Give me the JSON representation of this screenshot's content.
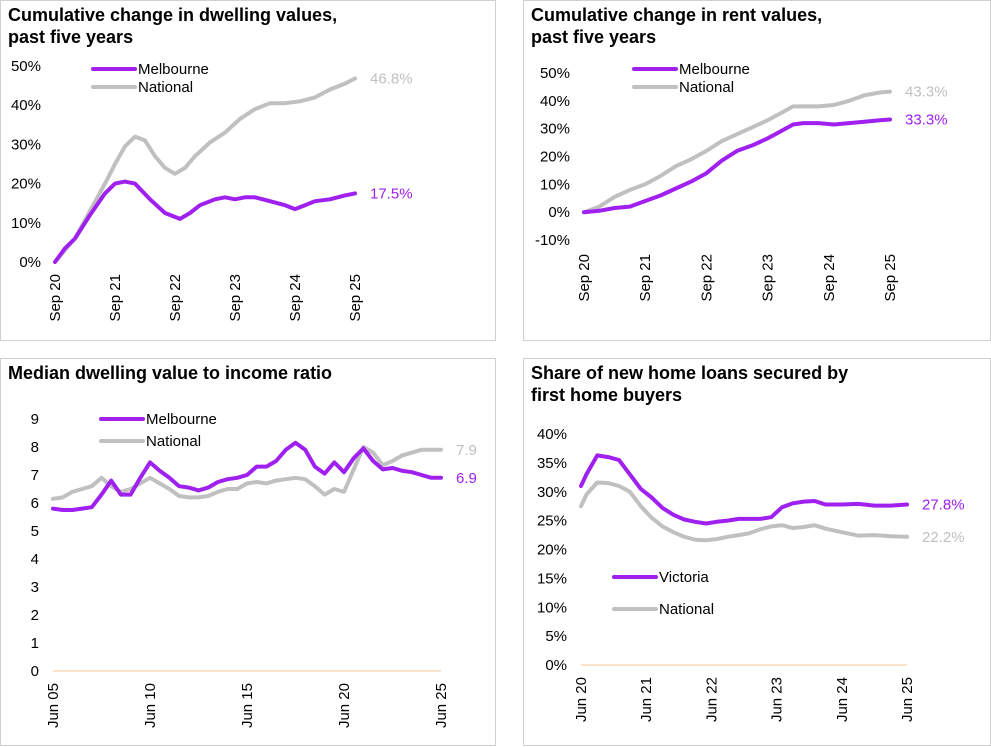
{
  "colors": {
    "melbourne": "#a020f0",
    "national": "#c0c0c0",
    "baseline": "#f5d9b8",
    "border": "#d0d0d0"
  },
  "chart_data": [
    {
      "id": "dwelling",
      "type": "line",
      "title": "Cumulative change in dwelling values,\npast five years",
      "y_ticks": [
        "0%",
        "10%",
        "20%",
        "30%",
        "40%",
        "50%"
      ],
      "x_ticks": [
        "Sep 20",
        "Sep 21",
        "Sep 22",
        "Sep 23",
        "Sep 24",
        "Sep 25"
      ],
      "ylim": [
        0,
        50
      ],
      "x_start": 2020.667,
      "x_end": 2025.667,
      "series": [
        {
          "name": "Melbourne",
          "color_key": "melbourne",
          "end_label": "17.5%",
          "x": [
            2020.667,
            2020.833,
            2021.0,
            2021.25,
            2021.5,
            2021.667,
            2021.833,
            2022.0,
            2022.25,
            2022.5,
            2022.75,
            2022.917,
            2023.083,
            2023.333,
            2023.5,
            2023.667,
            2023.833,
            2024.0,
            2024.25,
            2024.5,
            2024.667,
            2024.833,
            2025.0,
            2025.25,
            2025.5,
            2025.667
          ],
          "y": [
            0,
            3.5,
            6,
            12,
            17.5,
            20,
            20.5,
            20,
            16,
            12.5,
            11,
            12.5,
            14.5,
            16,
            16.5,
            16,
            16.5,
            16.5,
            15.5,
            14.5,
            13.5,
            14.5,
            15.5,
            16,
            17,
            17.5
          ]
        },
        {
          "name": "National",
          "color_key": "national",
          "end_label": "46.8%",
          "x": [
            2020.667,
            2020.833,
            2021.0,
            2021.25,
            2021.5,
            2021.667,
            2021.833,
            2022.0,
            2022.167,
            2022.333,
            2022.5,
            2022.667,
            2022.833,
            2023.0,
            2023.25,
            2023.5,
            2023.75,
            2024.0,
            2024.25,
            2024.5,
            2024.75,
            2025.0,
            2025.25,
            2025.5,
            2025.667
          ],
          "y": [
            0,
            3,
            6,
            13,
            20,
            25,
            29.5,
            32,
            31,
            27,
            24,
            22.5,
            24,
            27,
            30.5,
            33,
            36.5,
            39,
            40.5,
            40.5,
            41,
            42,
            44,
            45.5,
            46.8
          ]
        }
      ]
    },
    {
      "id": "rent",
      "type": "line",
      "title": "Cumulative change in rent values,\npast five years",
      "y_ticks": [
        "-10%",
        "0%",
        "10%",
        "20%",
        "30%",
        "40%",
        "50%"
      ],
      "x_ticks": [
        "Sep 20",
        "Sep 21",
        "Sep 22",
        "Sep 23",
        "Sep 24",
        "Sep 25"
      ],
      "ylim": [
        -10,
        50
      ],
      "x_start": 2020.667,
      "x_end": 2025.667,
      "series": [
        {
          "name": "Melbourne",
          "color_key": "melbourne",
          "end_label": "33.3%",
          "x": [
            2020.667,
            2020.917,
            2021.167,
            2021.417,
            2021.667,
            2021.917,
            2022.167,
            2022.417,
            2022.667,
            2022.917,
            2023.167,
            2023.417,
            2023.667,
            2023.917,
            2024.083,
            2024.25,
            2024.5,
            2024.75,
            2025.0,
            2025.25,
            2025.5,
            2025.667
          ],
          "y": [
            0,
            0.5,
            1.5,
            2,
            4,
            6,
            8.5,
            11,
            14,
            18.5,
            22,
            24,
            26.5,
            29.5,
            31.5,
            32,
            32,
            31.5,
            32,
            32.5,
            33,
            33.3
          ]
        },
        {
          "name": "National",
          "color_key": "national",
          "end_label": "43.3%",
          "x": [
            2020.667,
            2020.917,
            2021.167,
            2021.417,
            2021.667,
            2021.917,
            2022.167,
            2022.417,
            2022.667,
            2022.917,
            2023.167,
            2023.417,
            2023.667,
            2023.917,
            2024.083,
            2024.25,
            2024.5,
            2024.75,
            2025.0,
            2025.25,
            2025.5,
            2025.667
          ],
          "y": [
            0,
            2,
            5.5,
            8,
            10,
            13,
            16.5,
            19,
            22,
            25.5,
            28,
            30.5,
            33,
            36,
            38,
            38,
            38,
            38.5,
            40,
            42,
            43,
            43.3
          ]
        }
      ]
    },
    {
      "id": "ratio",
      "type": "line",
      "title": "Median dwelling value to income ratio",
      "y_ticks": [
        "0",
        "1",
        "2",
        "3",
        "4",
        "5",
        "6",
        "7",
        "8",
        "9"
      ],
      "x_ticks": [
        "Jun 05",
        "Jun 10",
        "Jun 15",
        "Jun 20",
        "Jun 25"
      ],
      "ylim": [
        0,
        9
      ],
      "x_start": 2005.5,
      "x_end": 2025.5,
      "series": [
        {
          "name": "Melbourne",
          "color_key": "melbourne",
          "end_label": "6.9",
          "x": [
            2005.5,
            2006.0,
            2006.5,
            2007.0,
            2007.5,
            2008.0,
            2008.5,
            2009.0,
            2009.5,
            2010.0,
            2010.5,
            2011.0,
            2011.5,
            2012.0,
            2012.5,
            2013.0,
            2013.5,
            2014.0,
            2014.5,
            2015.0,
            2015.5,
            2016.0,
            2016.5,
            2017.0,
            2017.5,
            2018.0,
            2018.5,
            2019.0,
            2019.5,
            2020.0,
            2020.5,
            2021.0,
            2021.5,
            2022.0,
            2022.5,
            2023.0,
            2023.5,
            2024.0,
            2024.5,
            2025.0,
            2025.5
          ],
          "y": [
            5.8,
            5.75,
            5.75,
            5.8,
            5.85,
            6.3,
            6.8,
            6.3,
            6.3,
            6.9,
            7.45,
            7.15,
            6.9,
            6.6,
            6.55,
            6.45,
            6.55,
            6.75,
            6.85,
            6.9,
            7.0,
            7.3,
            7.3,
            7.5,
            7.9,
            8.15,
            7.9,
            7.3,
            7.05,
            7.45,
            7.1,
            7.6,
            7.95,
            7.5,
            7.2,
            7.25,
            7.15,
            7.1,
            7.0,
            6.9,
            6.9
          ]
        },
        {
          "name": "National",
          "color_key": "national",
          "end_label": "7.9",
          "x": [
            2005.5,
            2006.0,
            2006.5,
            2007.0,
            2007.5,
            2008.0,
            2008.5,
            2009.0,
            2009.5,
            2010.0,
            2010.5,
            2011.0,
            2011.5,
            2012.0,
            2012.5,
            2013.0,
            2013.5,
            2014.0,
            2014.5,
            2015.0,
            2015.5,
            2016.0,
            2016.5,
            2017.0,
            2017.5,
            2018.0,
            2018.5,
            2019.0,
            2019.5,
            2020.0,
            2020.5,
            2021.0,
            2021.5,
            2022.0,
            2022.5,
            2023.0,
            2023.5,
            2024.0,
            2024.5,
            2025.0,
            2025.5
          ],
          "y": [
            6.15,
            6.2,
            6.4,
            6.5,
            6.6,
            6.9,
            6.6,
            6.4,
            6.5,
            6.7,
            6.9,
            6.7,
            6.5,
            6.25,
            6.2,
            6.2,
            6.25,
            6.4,
            6.5,
            6.5,
            6.7,
            6.75,
            6.7,
            6.8,
            6.85,
            6.9,
            6.85,
            6.6,
            6.3,
            6.5,
            6.4,
            7.2,
            8.0,
            7.8,
            7.35,
            7.5,
            7.7,
            7.8,
            7.9,
            7.9,
            7.9
          ]
        }
      ]
    },
    {
      "id": "loans",
      "type": "line",
      "title": "Share of new home loans secured by\nfirst home buyers",
      "y_ticks": [
        "0%",
        "5%",
        "10%",
        "15%",
        "20%",
        "25%",
        "30%",
        "35%",
        "40%"
      ],
      "x_ticks": [
        "Jun 20",
        "Jun 21",
        "Jun 22",
        "Jun 23",
        "Jun 24",
        "Jun 25"
      ],
      "ylim": [
        0,
        40
      ],
      "x_start": 2020.5,
      "x_end": 2025.5,
      "series": [
        {
          "name": "Victoria",
          "color_key": "melbourne",
          "end_label": "27.8%",
          "x": [
            2020.5,
            2020.583,
            2020.75,
            2020.917,
            2021.083,
            2021.25,
            2021.417,
            2021.583,
            2021.75,
            2021.917,
            2022.083,
            2022.25,
            2022.417,
            2022.583,
            2022.75,
            2022.917,
            2023.083,
            2023.25,
            2023.417,
            2023.583,
            2023.75,
            2023.917,
            2024.083,
            2024.25,
            2024.5,
            2024.75,
            2025.0,
            2025.25,
            2025.5
          ],
          "y": [
            31,
            33,
            36.3,
            36,
            35.5,
            33,
            30.5,
            29,
            27.2,
            26,
            25.2,
            24.8,
            24.5,
            24.8,
            25,
            25.3,
            25.3,
            25.3,
            25.6,
            27.3,
            28,
            28.3,
            28.4,
            27.8,
            27.8,
            27.9,
            27.6,
            27.6,
            27.8
          ]
        },
        {
          "name": "National",
          "color_key": "national",
          "end_label": "22.2%",
          "x": [
            2020.5,
            2020.583,
            2020.75,
            2020.917,
            2021.083,
            2021.25,
            2021.417,
            2021.583,
            2021.75,
            2021.917,
            2022.083,
            2022.25,
            2022.417,
            2022.583,
            2022.75,
            2022.917,
            2023.083,
            2023.25,
            2023.417,
            2023.583,
            2023.75,
            2023.917,
            2024.083,
            2024.25,
            2024.5,
            2024.75,
            2025.0,
            2025.25,
            2025.5
          ],
          "y": [
            27.5,
            29.5,
            31.6,
            31.5,
            31,
            30,
            27.5,
            25.5,
            24,
            23,
            22.2,
            21.7,
            21.6,
            21.8,
            22.2,
            22.5,
            22.8,
            23.5,
            24,
            24.2,
            23.7,
            23.9,
            24.2,
            23.6,
            23,
            22.4,
            22.5,
            22.3,
            22.2
          ]
        }
      ]
    }
  ]
}
